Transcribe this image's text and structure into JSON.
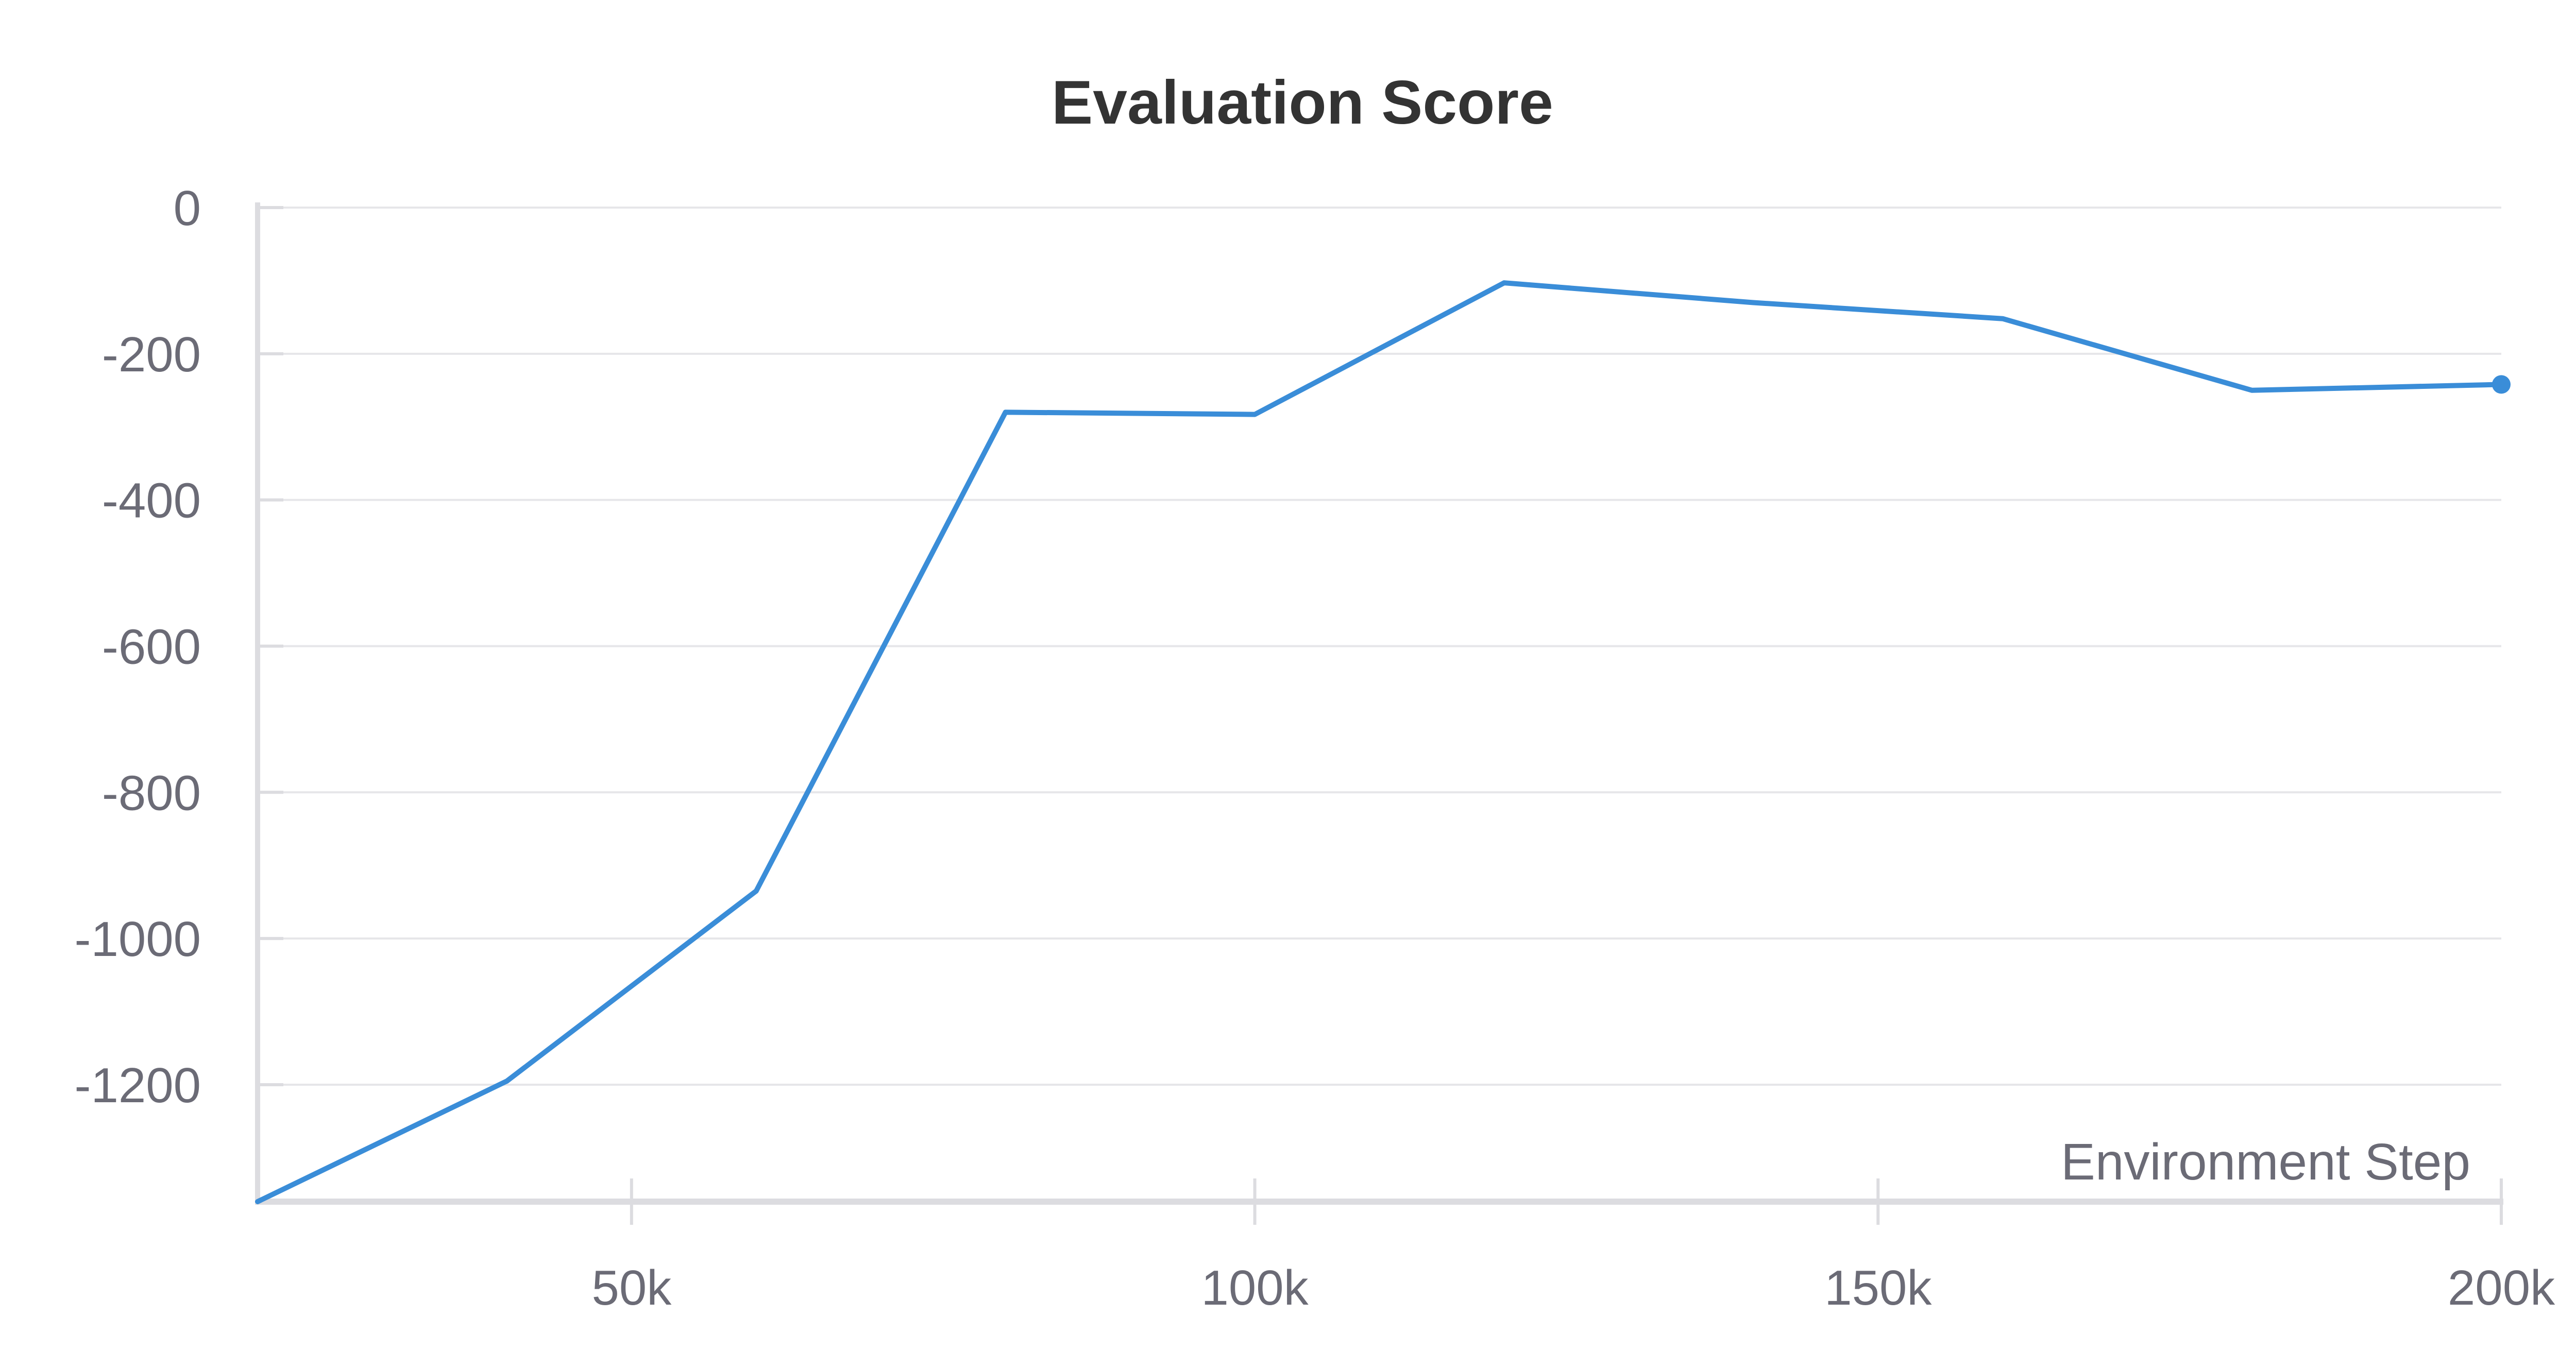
{
  "chart_data": {
    "type": "line",
    "title": "Evaluation Score",
    "xlabel": "Environment Step",
    "ylabel": "",
    "xlim": [
      20000,
      200000
    ],
    "ylim": [
      -1360,
      0
    ],
    "x_ticks": [
      50000,
      100000,
      150000,
      200000
    ],
    "x_tick_labels": [
      "50k",
      "100k",
      "150k",
      "200k"
    ],
    "y_ticks": [
      0,
      -200,
      -400,
      -600,
      -800,
      -1000,
      -1200
    ],
    "y_tick_labels": [
      "0",
      "-200",
      "-400",
      "-600",
      "-800",
      "-1000",
      "-1200"
    ],
    "grid": true,
    "series": [
      {
        "color": "#3a8dd8",
        "x": [
          20000,
          40000,
          60000,
          80000,
          100000,
          120000,
          140000,
          160000,
          180000,
          200000
        ],
        "y": [
          -1360,
          -1195,
          -935,
          -280,
          -283,
          -103,
          -130,
          -152,
          -250,
          -242
        ]
      }
    ]
  }
}
